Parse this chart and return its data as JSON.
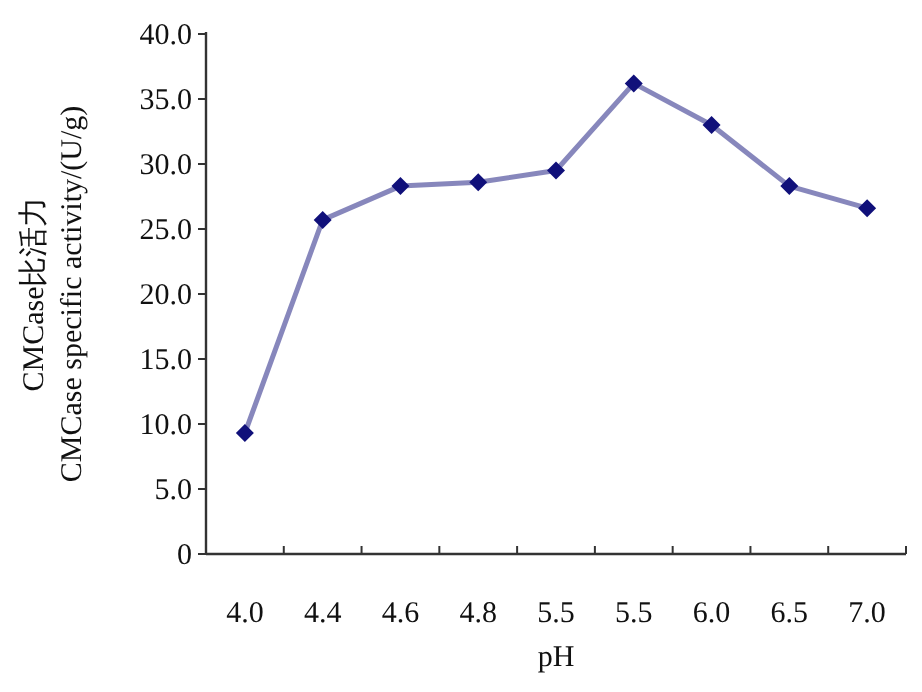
{
  "chart_data": {
    "type": "line",
    "xlabel": "pH",
    "ylabel": "CMCase比活力\nCMCase specific activity/(U/g)",
    "categories": [
      "4.0",
      "4.4",
      "4.6",
      "4.8",
      "5.5",
      "5.5",
      "6.0",
      "6.5",
      "7.0"
    ],
    "series": [
      {
        "color": "#10107a",
        "values": [
          9.3,
          25.7,
          28.3,
          28.6,
          29.5,
          36.2,
          33.0,
          28.3,
          26.6
        ]
      }
    ],
    "ylim": [
      0,
      40
    ],
    "yticks": [
      0,
      {
        "value": 5,
        "label": "5.0"
      },
      {
        "value": 10,
        "label": "10.0"
      },
      {
        "value": 15,
        "label": "15.0"
      },
      {
        "value": 20,
        "label": "20.0"
      },
      {
        "value": 25,
        "label": "25.0"
      },
      {
        "value": 30,
        "label": "30.0"
      },
      {
        "value": 35,
        "label": "35.0"
      },
      {
        "value": 40,
        "label": "40.0"
      }
    ],
    "marker": "diamond",
    "line_style": "solid",
    "grid": false
  }
}
